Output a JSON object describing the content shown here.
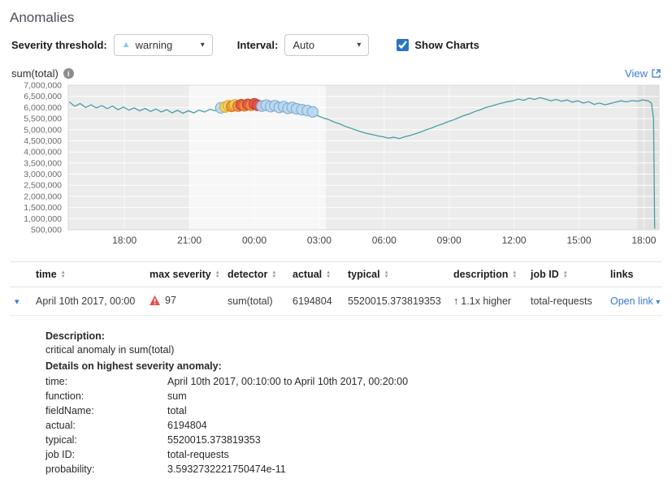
{
  "page": {
    "title": "Anomalies"
  },
  "icons": {
    "caret_down": "▾",
    "warning_triangle": "▲",
    "up_arrow": "↑",
    "info": "i",
    "expander": "▾"
  },
  "controls": {
    "severity_label": "Severity threshold:",
    "severity_value": "warning",
    "interval_label": "Interval:",
    "interval_value": "Auto",
    "show_charts_label": "Show Charts",
    "show_charts_checked": true
  },
  "chart_header": {
    "metric": "sum(total)",
    "view_label": "View"
  },
  "chart_data": {
    "type": "line",
    "title": "sum(total)",
    "xlim": [
      15.4,
      42.7
    ],
    "ylim": [
      500000,
      7000000
    ],
    "y_tick_step": 500000,
    "x_ticks": [
      {
        "x": 18,
        "label": "18:00"
      },
      {
        "x": 21,
        "label": "21:00"
      },
      {
        "x": 24,
        "label": "00:00"
      },
      {
        "x": 27,
        "label": "03:00"
      },
      {
        "x": 30,
        "label": "06:00"
      },
      {
        "x": 33,
        "label": "09:00"
      },
      {
        "x": 36,
        "label": "12:00"
      },
      {
        "x": 39,
        "label": "15:00"
      },
      {
        "x": 42,
        "label": "18:00"
      }
    ],
    "plot_bg": "#ececec",
    "bands": [
      {
        "from": 21,
        "to": 27.3,
        "color": "#f7f7f7"
      },
      {
        "from": 41.7,
        "to": 42.7,
        "color": "#e2e2e2"
      }
    ],
    "line_color": "#4a9da6",
    "series": [
      {
        "name": "sum(total)",
        "points": [
          [
            15.45,
            6250000
          ],
          [
            15.7,
            6050000
          ],
          [
            15.95,
            6180000
          ],
          [
            16.2,
            6000000
          ],
          [
            16.45,
            6120000
          ],
          [
            16.7,
            5980000
          ],
          [
            16.95,
            6080000
          ],
          [
            17.2,
            5950000
          ],
          [
            17.45,
            6060000
          ],
          [
            17.7,
            5900000
          ],
          [
            17.95,
            6020000
          ],
          [
            18.2,
            5880000
          ],
          [
            18.45,
            5980000
          ],
          [
            18.7,
            5850000
          ],
          [
            18.95,
            5960000
          ],
          [
            19.2,
            5820000
          ],
          [
            19.45,
            5930000
          ],
          [
            19.7,
            5800000
          ],
          [
            19.95,
            5900000
          ],
          [
            20.2,
            5760000
          ],
          [
            20.45,
            5870000
          ],
          [
            20.7,
            5740000
          ],
          [
            20.95,
            5850000
          ],
          [
            21.2,
            5760000
          ],
          [
            21.45,
            5880000
          ],
          [
            21.7,
            5800000
          ],
          [
            21.95,
            5920000
          ],
          [
            22.2,
            5850000
          ],
          [
            22.45,
            5980000
          ],
          [
            22.7,
            5900000
          ],
          [
            22.95,
            6050000
          ],
          [
            23.2,
            5980000
          ],
          [
            23.45,
            6080000
          ],
          [
            23.7,
            6020000
          ],
          [
            23.95,
            6120000
          ],
          [
            24.2,
            6060000
          ],
          [
            24.45,
            6100000
          ],
          [
            24.7,
            6000000
          ],
          [
            24.95,
            6050000
          ],
          [
            25.2,
            5950000
          ],
          [
            25.45,
            6000000
          ],
          [
            25.7,
            5900000
          ],
          [
            25.95,
            5940000
          ],
          [
            26.2,
            5840000
          ],
          [
            26.45,
            5780000
          ],
          [
            26.7,
            5680000
          ],
          [
            26.95,
            5620000
          ],
          [
            27.2,
            5520000
          ],
          [
            27.45,
            5450000
          ],
          [
            27.7,
            5340000
          ],
          [
            27.95,
            5260000
          ],
          [
            28.2,
            5150000
          ],
          [
            28.45,
            5070000
          ],
          [
            28.7,
            4980000
          ],
          [
            28.95,
            4900000
          ],
          [
            29.2,
            4830000
          ],
          [
            29.45,
            4780000
          ],
          [
            29.7,
            4720000
          ],
          [
            29.95,
            4680000
          ],
          [
            30.2,
            4620000
          ],
          [
            30.45,
            4660000
          ],
          [
            30.7,
            4600000
          ],
          [
            30.95,
            4680000
          ],
          [
            31.2,
            4740000
          ],
          [
            31.45,
            4820000
          ],
          [
            31.7,
            4900000
          ],
          [
            31.95,
            5000000
          ],
          [
            32.2,
            5080000
          ],
          [
            32.45,
            5180000
          ],
          [
            32.7,
            5260000
          ],
          [
            32.95,
            5360000
          ],
          [
            33.2,
            5440000
          ],
          [
            33.45,
            5540000
          ],
          [
            33.7,
            5640000
          ],
          [
            33.95,
            5720000
          ],
          [
            34.2,
            5820000
          ],
          [
            34.45,
            5900000
          ],
          [
            34.7,
            6000000
          ],
          [
            34.95,
            6060000
          ],
          [
            35.2,
            6140000
          ],
          [
            35.45,
            6200000
          ],
          [
            35.7,
            6260000
          ],
          [
            35.95,
            6300000
          ],
          [
            36.2,
            6380000
          ],
          [
            36.45,
            6320000
          ],
          [
            36.7,
            6420000
          ],
          [
            36.95,
            6360000
          ],
          [
            37.2,
            6440000
          ],
          [
            37.45,
            6380000
          ],
          [
            37.7,
            6300000
          ],
          [
            37.95,
            6360000
          ],
          [
            38.2,
            6280000
          ],
          [
            38.45,
            6340000
          ],
          [
            38.7,
            6240000
          ],
          [
            38.95,
            6300000
          ],
          [
            39.2,
            6200000
          ],
          [
            39.45,
            6260000
          ],
          [
            39.7,
            6140000
          ],
          [
            39.95,
            6200000
          ],
          [
            40.2,
            6120000
          ],
          [
            40.45,
            6180000
          ],
          [
            40.7,
            6240000
          ],
          [
            40.95,
            6300000
          ],
          [
            41.2,
            6250000
          ],
          [
            41.45,
            6310000
          ],
          [
            41.7,
            6280000
          ],
          [
            41.95,
            6340000
          ],
          [
            42.2,
            6300000
          ],
          [
            42.35,
            6200000
          ],
          [
            42.45,
            5500000
          ],
          [
            42.5,
            550000
          ]
        ]
      }
    ],
    "anomalies": [
      [
        22.45,
        5980000,
        "warning"
      ],
      [
        22.65,
        6020000,
        "minor"
      ],
      [
        22.8,
        6080000,
        "minor"
      ],
      [
        22.95,
        6050000,
        "major"
      ],
      [
        23.1,
        6120000,
        "minor"
      ],
      [
        23.25,
        6060000,
        "major"
      ],
      [
        23.4,
        6120000,
        "critical"
      ],
      [
        23.55,
        6080000,
        "major"
      ],
      [
        23.7,
        6140000,
        "critical"
      ],
      [
        23.85,
        6100000,
        "major"
      ],
      [
        24.0,
        6160000,
        "critical"
      ],
      [
        24.15,
        6100000,
        "critical"
      ],
      [
        24.35,
        6060000,
        "warning"
      ],
      [
        24.55,
        6100000,
        "warning"
      ],
      [
        24.75,
        6040000,
        "warning"
      ],
      [
        24.95,
        6080000,
        "warning"
      ],
      [
        25.15,
        6000000,
        "warning"
      ],
      [
        25.35,
        6040000,
        "warning"
      ],
      [
        25.55,
        5960000,
        "warning"
      ],
      [
        25.75,
        6000000,
        "warning"
      ],
      [
        25.95,
        5940000,
        "warning"
      ],
      [
        26.2,
        5900000,
        "warning"
      ],
      [
        26.45,
        5860000,
        "warning"
      ],
      [
        26.7,
        5800000,
        "warning"
      ]
    ],
    "severity_colors": {
      "critical": {
        "fill": "#e4514b",
        "stroke": "#c43d38"
      },
      "major": {
        "fill": "#f2903d",
        "stroke": "#d9731a"
      },
      "minor": {
        "fill": "#f5d163",
        "stroke": "#d9ae2f"
      },
      "warning": {
        "fill": "#b9d8f1",
        "stroke": "#84aed2"
      }
    }
  },
  "table": {
    "columns": [
      {
        "label": "time",
        "sortable": true
      },
      {
        "label": "max severity",
        "sortable": true
      },
      {
        "label": "detector",
        "sortable": true
      },
      {
        "label": "actual",
        "sortable": true
      },
      {
        "label": "typical",
        "sortable": true
      },
      {
        "label": "description",
        "sortable": true
      },
      {
        "label": "job ID",
        "sortable": true
      },
      {
        "label": "links",
        "sortable": false
      }
    ],
    "row": {
      "time": "April 10th 2017, 00:00",
      "max_severity": "97",
      "detector": "sum(total)",
      "actual": "6194804",
      "typical": "5520015.373819353",
      "description": "1.1x higher",
      "job_id": "total-requests",
      "links": "Open link"
    }
  },
  "details": {
    "description_label": "Description:",
    "description_text": "critical anomaly in sum(total)",
    "details_label": "Details on highest severity anomaly:",
    "fields": [
      {
        "key": "time:",
        "value": "April 10th 2017, 00:10:00 to April 10th 2017, 00:20:00"
      },
      {
        "key": "function:",
        "value": "sum"
      },
      {
        "key": "fieldName:",
        "value": "total"
      },
      {
        "key": "actual:",
        "value": "6194804"
      },
      {
        "key": "typical:",
        "value": "5520015.373819353"
      },
      {
        "key": "job ID:",
        "value": "total-requests"
      },
      {
        "key": "probability:",
        "value": "3.5932732221750474e-11"
      }
    ]
  }
}
